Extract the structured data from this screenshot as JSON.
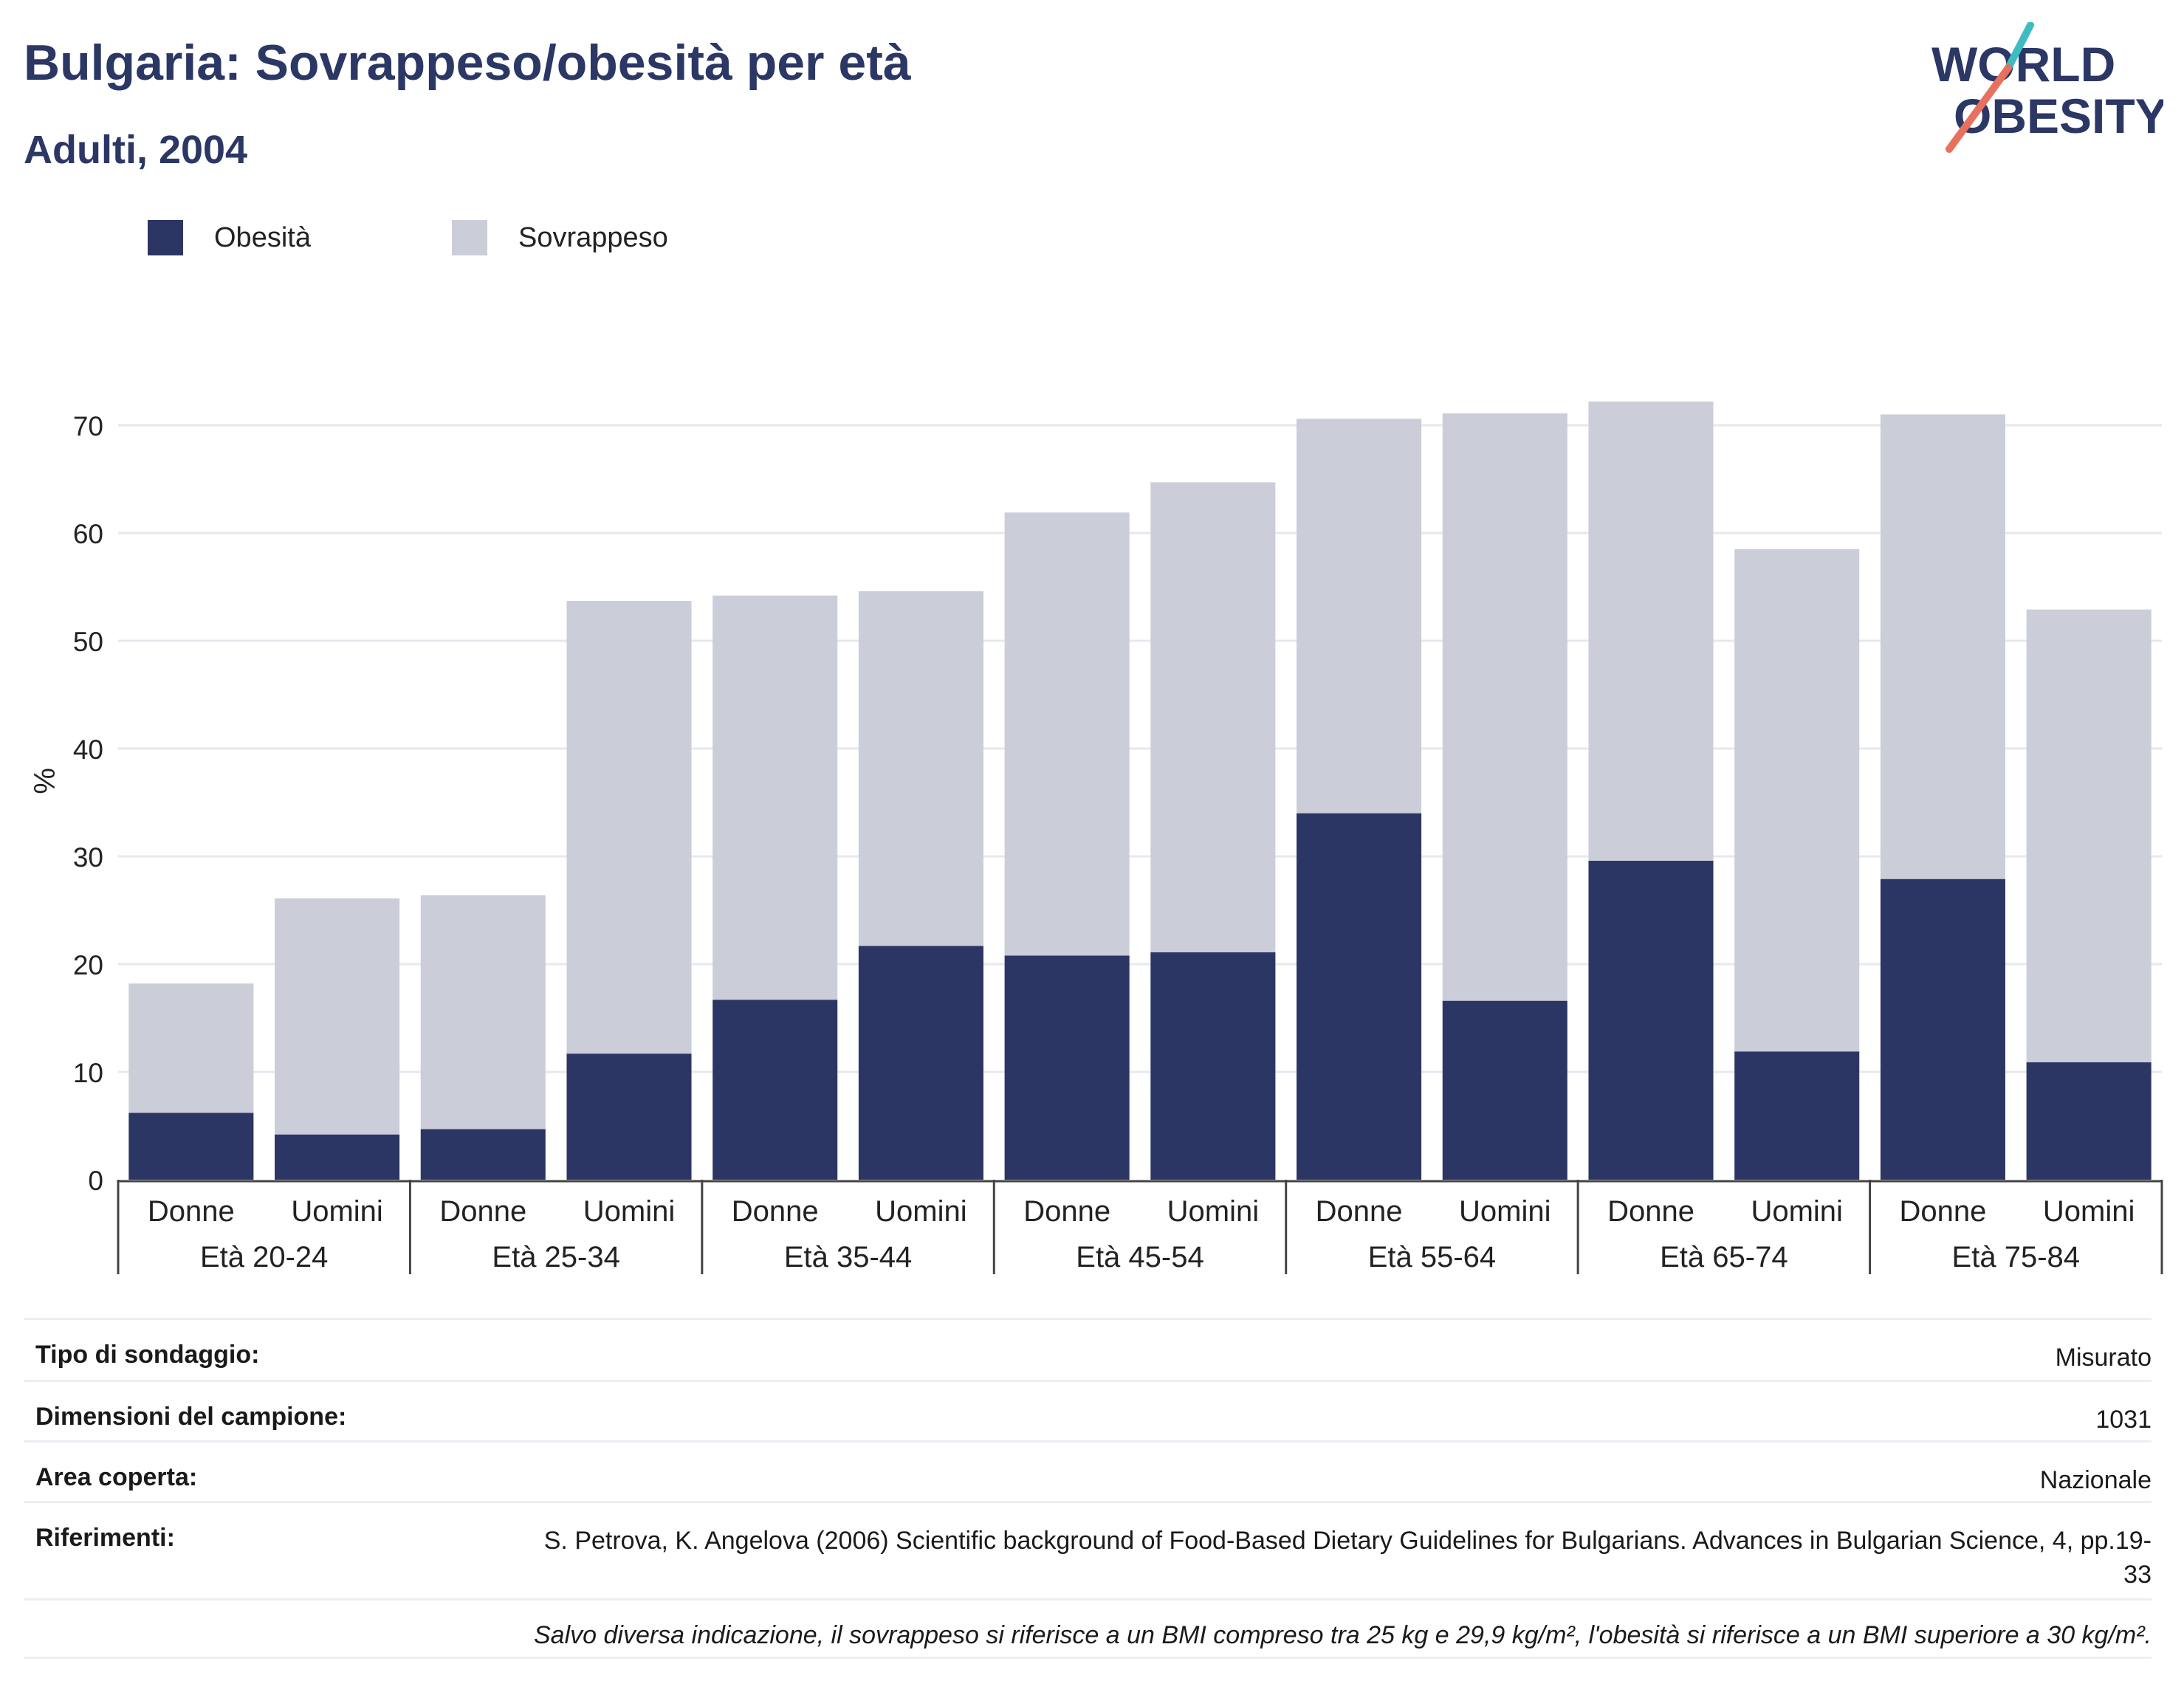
{
  "header": {
    "title": "Bulgaria: Sovrappeso/obesità per età",
    "subtitle": "Adulti, 2004",
    "logo_line1": "WORLD",
    "logo_line2": "OBESITY"
  },
  "colors": {
    "obesity": "#2b3664",
    "overweight": "#cbcdd8",
    "text_dark": "#2b3764",
    "logo_teal": "#3ebcc0",
    "logo_coral": "#e8705e",
    "grid": "#e6e8ef"
  },
  "legend": [
    {
      "label": "Obesità",
      "color": "#2b3664"
    },
    {
      "label": "Sovrappeso",
      "color": "#cbcdd8"
    }
  ],
  "chart_data": {
    "type": "bar",
    "stacked": true,
    "ylabel": "%",
    "ylim": [
      0,
      75
    ],
    "yticks": [
      0,
      10,
      20,
      30,
      40,
      50,
      60,
      70
    ],
    "grid": true,
    "legend_position": "top-left",
    "groups": [
      "Età 20-24",
      "Età 25-34",
      "Età 35-44",
      "Età 45-54",
      "Età 55-64",
      "Età 65-74",
      "Età 75-84"
    ],
    "sexes": [
      "Donne",
      "Uomini"
    ],
    "series": [
      {
        "name": "Obesità",
        "values": [
          6.2,
          4.2,
          4.7,
          11.7,
          16.7,
          21.7,
          20.8,
          21.1,
          34.0,
          16.6,
          29.6,
          11.9,
          27.9,
          10.9
        ]
      },
      {
        "name": "Sovrappeso",
        "values": [
          12.0,
          21.9,
          21.7,
          42.0,
          37.5,
          32.9,
          41.1,
          43.6,
          36.6,
          54.5,
          42.6,
          46.6,
          43.1,
          42.0
        ]
      }
    ]
  },
  "info": [
    {
      "key": "Tipo di sondaggio:",
      "value": "Misurato"
    },
    {
      "key": "Dimensioni del campione:",
      "value": "1031"
    },
    {
      "key": "Area coperta:",
      "value": "Nazionale"
    },
    {
      "key": "Riferimenti:",
      "value": "S. Petrova, K. Angelova (2006) Scientific background of Food-Based Dietary Guidelines for Bulgarians. Advances in Bulgarian Science, 4, pp.19-33"
    }
  ],
  "note": "Salvo diversa indicazione, il sovrappeso si riferisce a un BMI compreso tra 25 kg e 29,9 kg/m², l'obesità si riferisce a un BMI superiore a 30 kg/m²."
}
